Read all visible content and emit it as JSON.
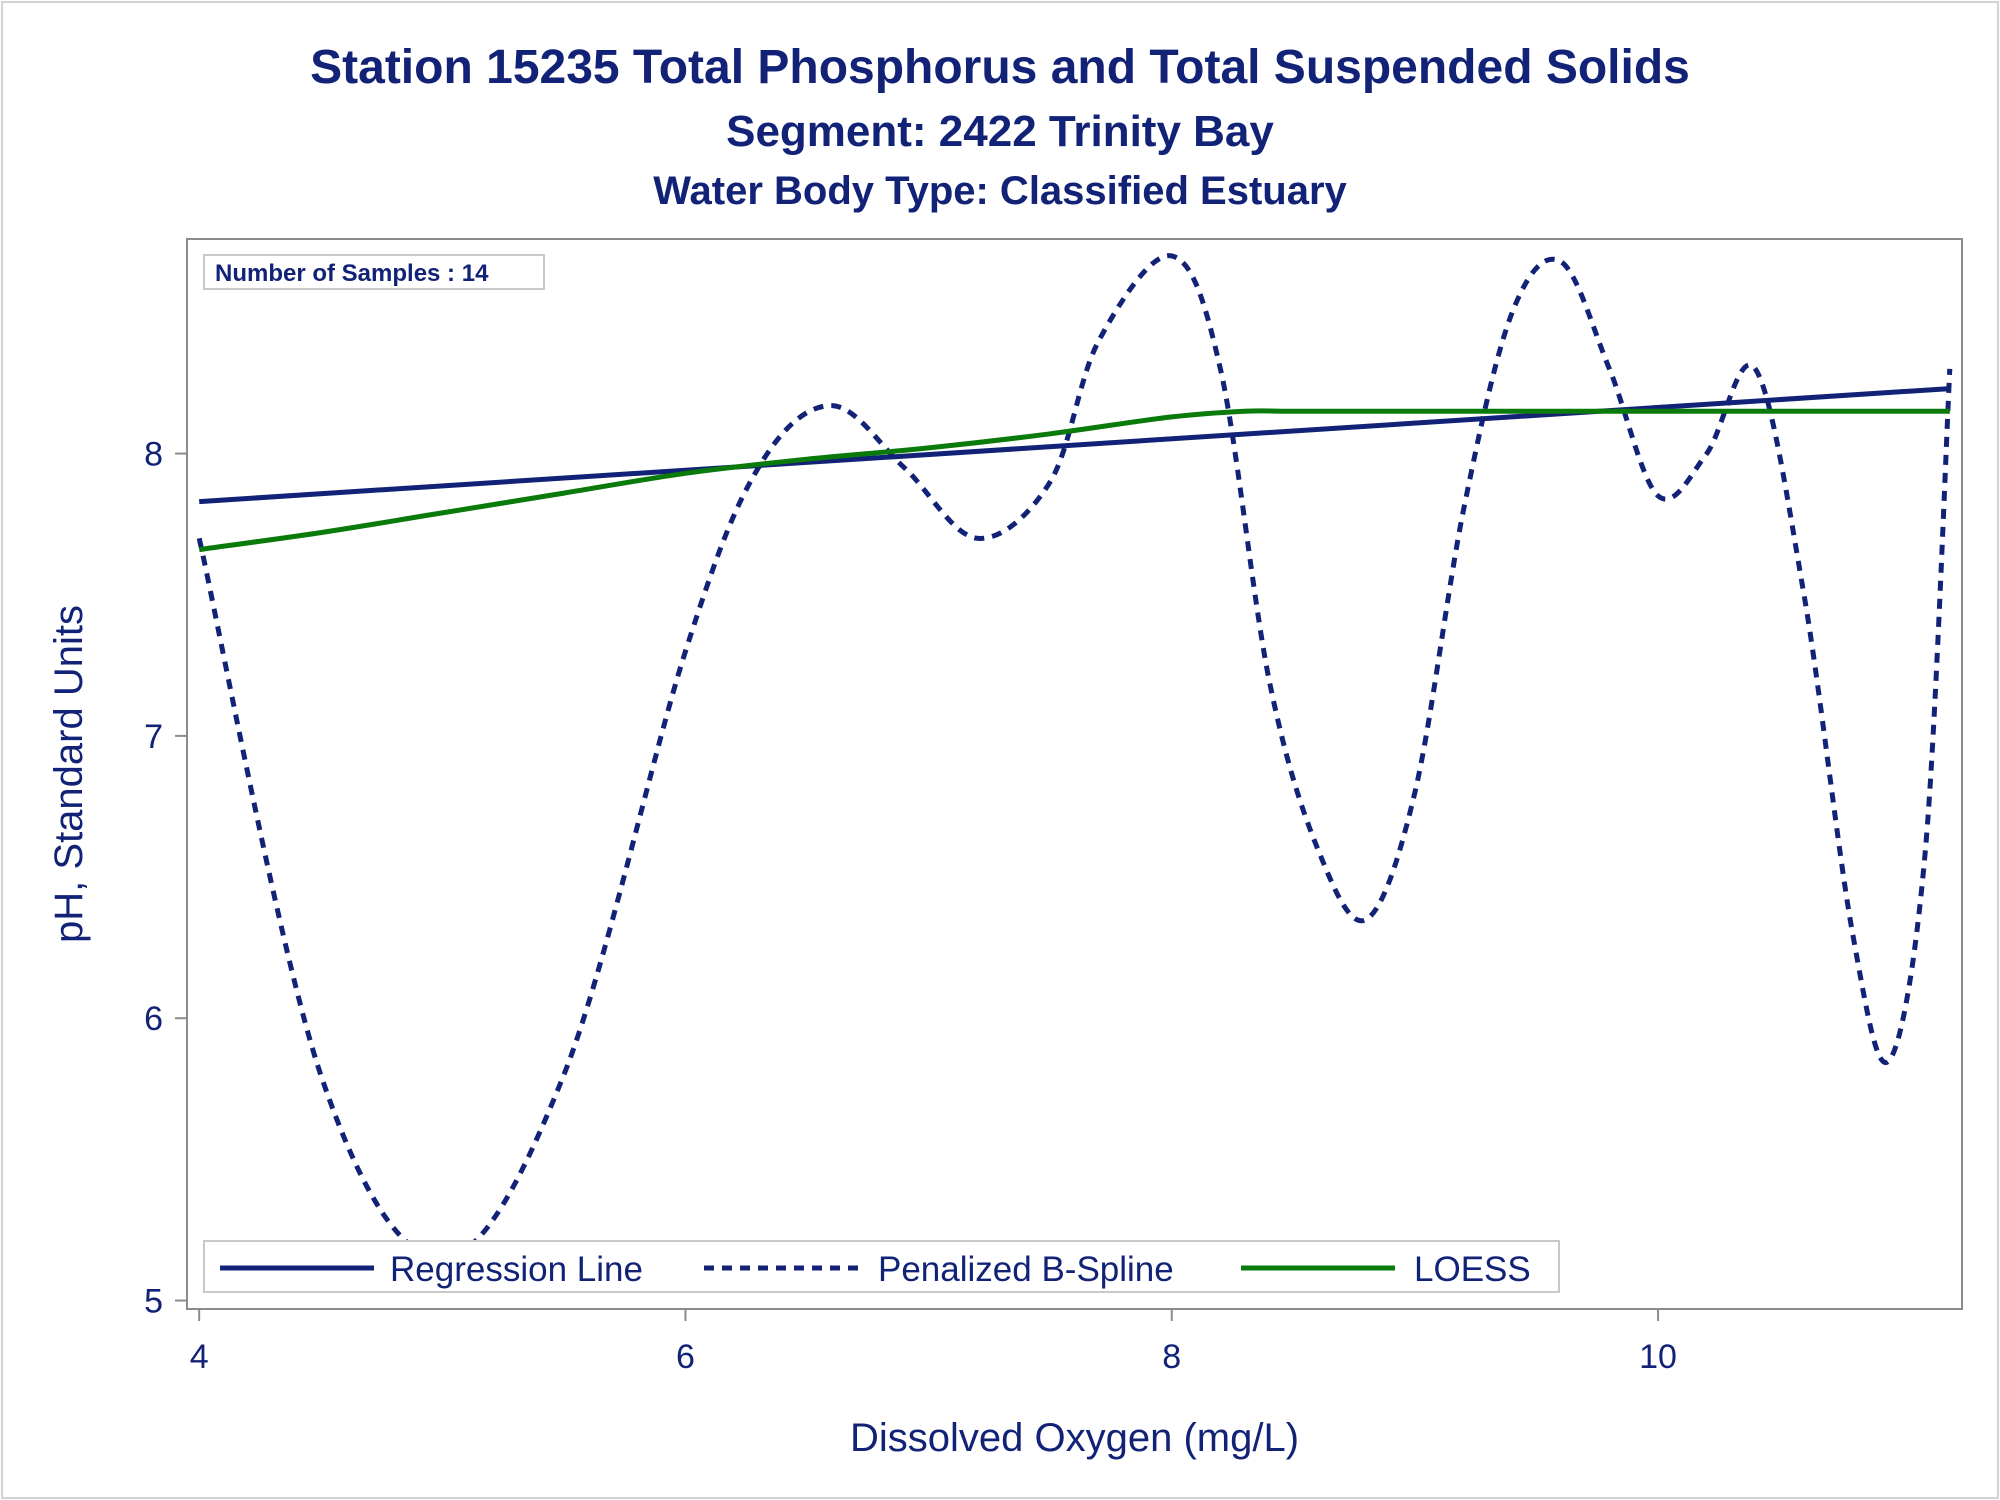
{
  "chart_data": {
    "type": "line",
    "title": "Station 15235  Total Phosphorus and Total Suspended Solids",
    "subtitle": "Segment: 2422  Trinity Bay",
    "subtitle2": "Water Body Type: Classified Estuary",
    "xlabel": "Dissolved Oxygen (mg/L)",
    "ylabel": "pH, Standard Units",
    "xlim": [
      3.95,
      11.25
    ],
    "ylim": [
      4.97,
      8.76
    ],
    "xticks": [
      4,
      6,
      8,
      10
    ],
    "yticks": [
      5,
      6,
      7,
      8
    ],
    "annotation": "Number of Samples : 14",
    "legend_position": "bottom-left-inside",
    "series": [
      {
        "name": "Regression Line",
        "style": "solid",
        "color": "#112277",
        "x": [
          4.0,
          11.2
        ],
        "y": [
          7.83,
          8.23
        ]
      },
      {
        "name": "Penalized B-Spline",
        "style": "dashed",
        "color": "#112277",
        "x": [
          4.0,
          4.5,
          5.0,
          5.5,
          6.0,
          6.3,
          6.6,
          6.9,
          7.2,
          7.5,
          7.7,
          8.0,
          8.2,
          8.4,
          8.6,
          8.8,
          9.0,
          9.2,
          9.4,
          9.6,
          9.8,
          10.0,
          10.2,
          10.4,
          10.6,
          10.8,
          10.95,
          11.1,
          11.2
        ],
        "y": [
          7.7,
          5.8,
          5.15,
          5.8,
          7.3,
          7.95,
          8.17,
          7.95,
          7.7,
          7.9,
          8.4,
          8.7,
          8.3,
          7.2,
          6.6,
          6.35,
          6.8,
          7.8,
          8.5,
          8.68,
          8.3,
          7.85,
          8.0,
          8.3,
          7.5,
          6.3,
          5.85,
          6.6,
          8.3
        ]
      },
      {
        "name": "LOESS",
        "style": "solid",
        "color": "#0a7a0a",
        "x": [
          4.0,
          4.5,
          5.0,
          5.5,
          6.0,
          6.5,
          7.0,
          7.5,
          8.0,
          8.3,
          8.5,
          9.0,
          9.5,
          10.0,
          10.5,
          11.0,
          11.2
        ],
        "y": [
          7.66,
          7.72,
          7.79,
          7.86,
          7.93,
          7.98,
          8.02,
          8.07,
          8.13,
          8.15,
          8.15,
          8.15,
          8.15,
          8.15,
          8.15,
          8.15,
          8.15
        ]
      }
    ]
  }
}
